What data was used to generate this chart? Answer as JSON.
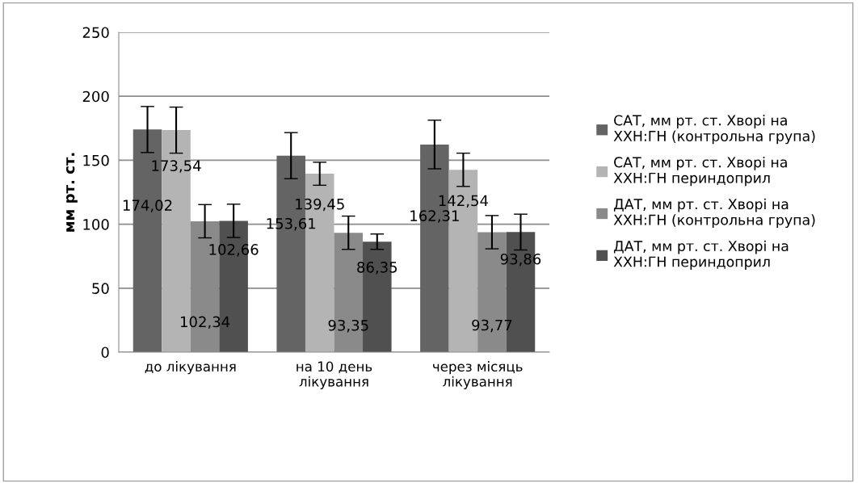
{
  "chart_data": {
    "type": "bar",
    "ylabel": "мм рт. ст.",
    "categories": [
      "до лікування",
      "на 10 день\nлікування",
      "через місяць\nлікування"
    ],
    "series": [
      {
        "name": "САТ, мм рт. ст. Хворі на\nХХН:ГН (контрольна група)",
        "color": "#646464",
        "values": [
          174.02,
          153.61,
          162.31
        ],
        "errors": [
          18,
          18,
          19
        ],
        "value_labels": [
          "174,02",
          "153,61",
          "162,31"
        ]
      },
      {
        "name": "САТ, мм рт. ст. Хворі на\nХХН:ГН периндоприл",
        "color": "#b4b4b4",
        "values": [
          173.54,
          139.45,
          142.54
        ],
        "errors": [
          18,
          9,
          13
        ],
        "value_labels": [
          "173,54",
          "139,45",
          "142,54"
        ]
      },
      {
        "name": "ДАТ, мм рт. ст. Хворі на\nХХН:ГН (контрольна група)",
        "color": "#8a8a8a",
        "values": [
          102.34,
          93.35,
          93.77
        ],
        "errors": [
          13,
          13,
          13
        ],
        "value_labels": [
          "102,34",
          "93,35",
          "93,77"
        ]
      },
      {
        "name": "ДАТ, мм рт. ст. Хворі на\nХХН:ГН периндоприл",
        "color": "#505050",
        "values": [
          102.66,
          86.35,
          93.86
        ],
        "errors": [
          13,
          6,
          14
        ],
        "value_labels": [
          "102,66",
          "86,35",
          "93,86"
        ]
      }
    ],
    "ylim": [
      0,
      250
    ],
    "yticks": [
      0,
      50,
      100,
      150,
      200,
      250
    ],
    "grid": "y",
    "legend": "right"
  }
}
